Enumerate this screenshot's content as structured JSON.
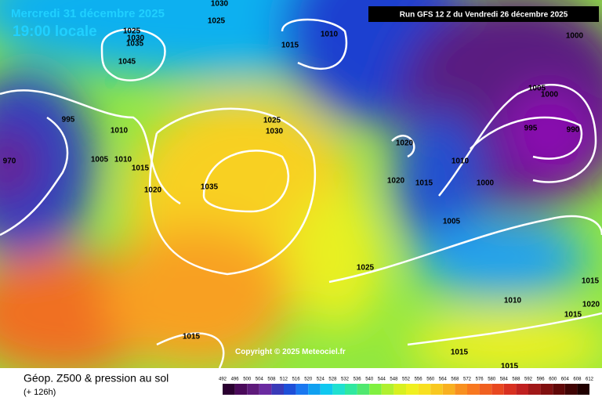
{
  "header": {
    "date": "Mercredi 31 décembre 2025",
    "time": "19:00 locale",
    "run": "Run GFS 12 Z du Vendredi 26 décembre 2025"
  },
  "copyright": "Copyright © 2025 Meteociel.fr",
  "footer": {
    "title": "Géop. Z500 & pression au sol",
    "lead": "(+ 126h)"
  },
  "isobar_labels": [
    1030,
    1025,
    1010,
    1015,
    1000,
    1025,
    1030,
    1035,
    1045,
    995,
    1010,
    1005,
    1010,
    1015,
    1020,
    1035,
    1025,
    1030,
    1020,
    1020,
    1015,
    1010,
    1000,
    1005,
    1000,
    995,
    990,
    1005,
    1025,
    1010,
    1015,
    1020,
    1015,
    1015,
    1015,
    1015,
    970
  ],
  "colorbar": {
    "labels": [
      492,
      496,
      500,
      504,
      508,
      512,
      516,
      520,
      524,
      528,
      532,
      536,
      540,
      544,
      548,
      552,
      556,
      560,
      564,
      568,
      572,
      576,
      580,
      584,
      588,
      592,
      596,
      600,
      604,
      608,
      612
    ],
    "colors": [
      "#2a0030",
      "#4a0a5a",
      "#5e1a7a",
      "#6a2aa0",
      "#3a3ab8",
      "#1e4fd8",
      "#1a78f0",
      "#10a0f0",
      "#10c8f0",
      "#20e0d0",
      "#30e8a0",
      "#50e870",
      "#80f040",
      "#b0f030",
      "#d8f020",
      "#f0f020",
      "#f8e020",
      "#f8c820",
      "#f8b020",
      "#f89020",
      "#f87820",
      "#f06020",
      "#e84820",
      "#d83020",
      "#c02020",
      "#a01818",
      "#801010",
      "#600808",
      "#400404",
      "#200000"
    ]
  }
}
